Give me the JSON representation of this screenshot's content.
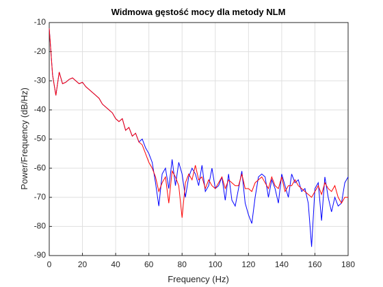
{
  "chart_data": {
    "type": "line",
    "title": "Widmowa gęstość mocy dla metody NLM",
    "x_label": "Frequency (Hz)",
    "y_label": "Power/Frequency (dB/Hz)",
    "x": [
      0,
      2,
      4,
      6,
      8,
      10,
      12,
      14,
      16,
      18,
      20,
      22,
      24,
      26,
      28,
      30,
      32,
      34,
      36,
      38,
      40,
      42,
      44,
      46,
      48,
      50,
      52,
      54,
      56,
      58,
      60,
      62,
      64,
      66,
      68,
      70,
      72,
      74,
      76,
      78,
      80,
      82,
      84,
      86,
      88,
      90,
      92,
      94,
      96,
      98,
      100,
      102,
      104,
      106,
      108,
      110,
      112,
      114,
      116,
      118,
      120,
      122,
      124,
      126,
      128,
      130,
      132,
      134,
      136,
      138,
      140,
      142,
      144,
      146,
      148,
      150,
      152,
      154,
      156,
      158,
      160,
      162,
      164,
      166,
      168,
      170,
      172,
      174,
      176,
      178,
      180
    ],
    "series": [
      {
        "name": "blue",
        "color": "#0000ff",
        "values": [
          -12,
          -28,
          -35,
          -27,
          -31,
          -30.5,
          -29.5,
          -29,
          -30,
          -31,
          -30.5,
          -32,
          -33,
          -34,
          -35,
          -36,
          -38,
          -39,
          -40,
          -41,
          -43,
          -44,
          -43,
          -47,
          -46,
          -49,
          -48,
          -51,
          -50,
          -53,
          -55,
          -58,
          -65,
          -73,
          -62,
          -60,
          -67,
          -57,
          -66,
          -58,
          -62,
          -70,
          -63,
          -60,
          -62,
          -66,
          -59,
          -68,
          -66,
          -60,
          -67,
          -66,
          -63,
          -71,
          -62,
          -71,
          -73,
          -67,
          -61,
          -72,
          -76,
          -79,
          -70,
          -63,
          -62,
          -63,
          -70,
          -64,
          -67,
          -72,
          -62,
          -66,
          -70,
          -62,
          -65,
          -64,
          -68,
          -67,
          -72,
          -87,
          -67,
          -65,
          -78,
          -63,
          -70,
          -75,
          -70,
          -73,
          -72,
          -65,
          -63
        ]
      },
      {
        "name": "red",
        "color": "#ff0000",
        "values": [
          -12,
          -28,
          -35,
          -27,
          -31,
          -30.5,
          -29.5,
          -29,
          -30,
          -31,
          -30.5,
          -32,
          -33,
          -34,
          -35,
          -36,
          -38,
          -39,
          -40,
          -41,
          -43,
          -44,
          -43,
          -47,
          -46,
          -49,
          -48,
          -51,
          -52,
          -55,
          -58,
          -60,
          -63,
          -68,
          -65,
          -63,
          -72,
          -61,
          -63,
          -66,
          -77,
          -65,
          -62,
          -64,
          -59,
          -64,
          -63,
          -67,
          -64,
          -66,
          -67,
          -65,
          -63,
          -67,
          -64,
          -65,
          -66,
          -66,
          -62,
          -67,
          -67,
          -68,
          -65,
          -64,
          -63,
          -65,
          -67,
          -63,
          -66,
          -67,
          -63,
          -68,
          -66,
          -66,
          -64,
          -66,
          -67,
          -68,
          -69,
          -70,
          -68,
          -66,
          -69,
          -65,
          -67,
          -68,
          -66,
          -70,
          -72,
          -70,
          -70
        ]
      }
    ],
    "xlim": [
      0,
      180
    ],
    "xticks": [
      0,
      20,
      40,
      60,
      80,
      100,
      120,
      140,
      160,
      180
    ],
    "ylim": [
      -90,
      -10
    ],
    "yticks": [
      -90,
      -80,
      -70,
      -60,
      -50,
      -40,
      -30,
      -20,
      -10
    ],
    "grid": true
  }
}
